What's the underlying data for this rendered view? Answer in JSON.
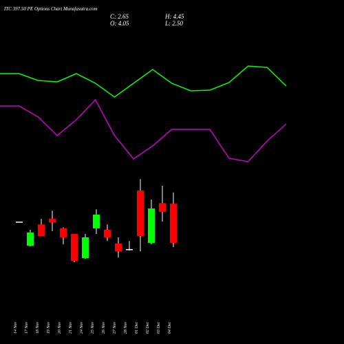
{
  "header": {
    "title": "ITC 397.50 PE Options Chart Munafasutra.com",
    "close": "C: 2.65",
    "high": "H: 4.45",
    "open": "O: 4.05",
    "low": "L: 2.50"
  },
  "chart_data": [
    {
      "type": "candlestick",
      "categories": [
        "14 Nov",
        "17 Nov",
        "18 Nov",
        "19 Nov",
        "20 Nov",
        "21 Nov",
        "24 Nov",
        "25 Nov",
        "26 Nov",
        "27 Nov",
        "28 Nov",
        "01 Dec",
        "02 Dec",
        "03 Dec",
        "04 Dec"
      ],
      "open": [
        3.41,
        2.55,
        3.31,
        3.51,
        3.17,
        2.97,
        2.11,
        3.17,
        3.12,
        2.63,
        2.43,
        4.52,
        2.65,
        4.07,
        4.05
      ],
      "high": [
        3.41,
        3.12,
        3.51,
        3.8,
        3.21,
        2.97,
        2.97,
        3.85,
        3.31,
        2.85,
        2.72,
        4.93,
        4.2,
        4.69,
        4.45
      ],
      "low": [
        3.41,
        2.53,
        2.9,
        3.07,
        2.6,
        1.96,
        2.08,
        2.97,
        2.72,
        2.13,
        2.38,
        2.35,
        2.6,
        3.41,
        2.5
      ],
      "close": [
        3.41,
        3.02,
        2.9,
        3.39,
        2.85,
        2.01,
        2.85,
        3.66,
        2.85,
        2.35,
        2.43,
        2.9,
        3.88,
        3.76,
        2.65
      ],
      "up_color": "#00ff00",
      "down_color": "#ff0000",
      "flat_color": "#ffffff",
      "ylim": [
        1.5,
        5.5
      ]
    },
    {
      "type": "line",
      "x": [
        0,
        1,
        2,
        3,
        4,
        5,
        6,
        7,
        8,
        9,
        10,
        11,
        12,
        13,
        14,
        15
      ],
      "xlim": [
        0,
        15
      ],
      "ylim": [
        0,
        100
      ],
      "series": [
        {
          "color": "#00ff00",
          "values": [
            77.2,
            77.2,
            73.2,
            72.4,
            77.2,
            71.6,
            63.6,
            71.6,
            79.6,
            71.6,
            67.2,
            67.6,
            72,
            81.6,
            80.8,
            70
          ]
        },
        {
          "color": "#cc00cc",
          "values": [
            58.4,
            58.4,
            52,
            41.2,
            50.4,
            62,
            41.2,
            27.6,
            35.2,
            44.8,
            44.8,
            44.8,
            28,
            26,
            38,
            48
          ]
        }
      ]
    }
  ]
}
